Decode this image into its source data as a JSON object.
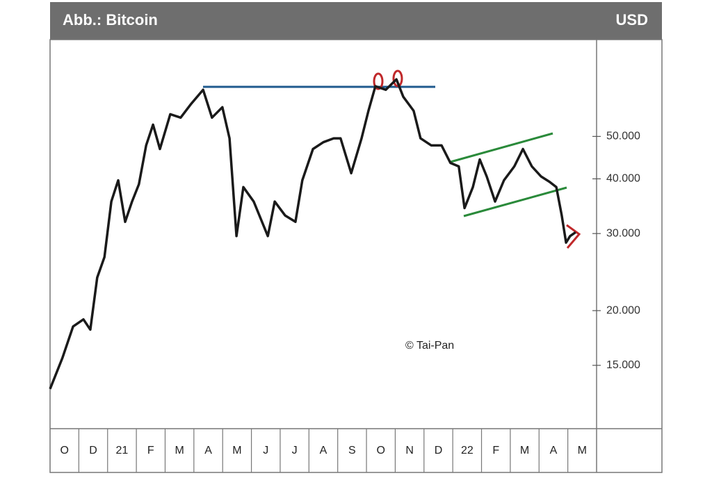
{
  "chart_data": {
    "type": "line",
    "title": "Abb.: Bitcoin",
    "unit": "USD",
    "annotation": "© Tai-Pan",
    "log_scale": true,
    "xlim": [
      0,
      19
    ],
    "xticks": [
      {
        "value": 0.5,
        "label": "O"
      },
      {
        "value": 1.5,
        "label": "D"
      },
      {
        "value": 2.5,
        "label": "21"
      },
      {
        "value": 3.5,
        "label": "F"
      },
      {
        "value": 4.5,
        "label": "M"
      },
      {
        "value": 5.5,
        "label": "A"
      },
      {
        "value": 6.5,
        "label": "M"
      },
      {
        "value": 7.5,
        "label": "J"
      },
      {
        "value": 8.5,
        "label": "J"
      },
      {
        "value": 9.5,
        "label": "A"
      },
      {
        "value": 10.5,
        "label": "S"
      },
      {
        "value": 11.5,
        "label": "O"
      },
      {
        "value": 12.5,
        "label": "N"
      },
      {
        "value": 13.5,
        "label": "D"
      },
      {
        "value": 14.5,
        "label": "22"
      },
      {
        "value": 15.5,
        "label": "F"
      },
      {
        "value": 16.5,
        "label": "M"
      },
      {
        "value": 17.5,
        "label": "A"
      },
      {
        "value": 18.5,
        "label": "M"
      }
    ],
    "ylim": [
      10750,
      83200
    ],
    "yticks": [
      {
        "value": 15000,
        "label": "15.000"
      },
      {
        "value": 20000,
        "label": "20.000"
      },
      {
        "value": 30000,
        "label": "30.000"
      },
      {
        "value": 40000,
        "label": "40.000"
      },
      {
        "value": 50000,
        "label": "50.000"
      }
    ],
    "series": [
      {
        "color": "#1a1a1a",
        "x": [
          0,
          0.43,
          0.8,
          1.16,
          1.4,
          1.64,
          1.89,
          2.13,
          2.37,
          2.61,
          2.85,
          3.09,
          3.34,
          3.58,
          3.82,
          4.18,
          4.54,
          4.91,
          5.32,
          5.63,
          5.99,
          6.24,
          6.48,
          6.72,
          7.08,
          7.57,
          7.81,
          8.17,
          8.53,
          8.77,
          9.14,
          9.5,
          9.86,
          10.1,
          10.47,
          10.83,
          11.07,
          11.31,
          11.67,
          12.04,
          12.28,
          12.64,
          12.88,
          13.25,
          13.61,
          13.92,
          14.21,
          14.41,
          14.7,
          14.94,
          15.18,
          15.47,
          15.78,
          16.14,
          16.44,
          16.75,
          17.07,
          17.36,
          17.6,
          17.79,
          17.94,
          18.08,
          18.27
        ],
        "values": [
          13250,
          15600,
          18400,
          19100,
          18100,
          23800,
          26500,
          35500,
          39700,
          31900,
          35500,
          38900,
          47700,
          53200,
          46800,
          56200,
          55200,
          59400,
          63900,
          55200,
          58300,
          49500,
          29600,
          38300,
          35500,
          29600,
          35500,
          33000,
          31900,
          39700,
          46800,
          48500,
          49500,
          49500,
          41200,
          49500,
          57200,
          65100,
          63900,
          67500,
          61600,
          57200,
          49500,
          47700,
          47700,
          43500,
          42700,
          34300,
          38300,
          44300,
          40500,
          35500,
          39700,
          42700,
          46800,
          42700,
          40500,
          39400,
          38300,
          33000,
          28600,
          29600,
          30200
        ]
      }
    ]
  }
}
